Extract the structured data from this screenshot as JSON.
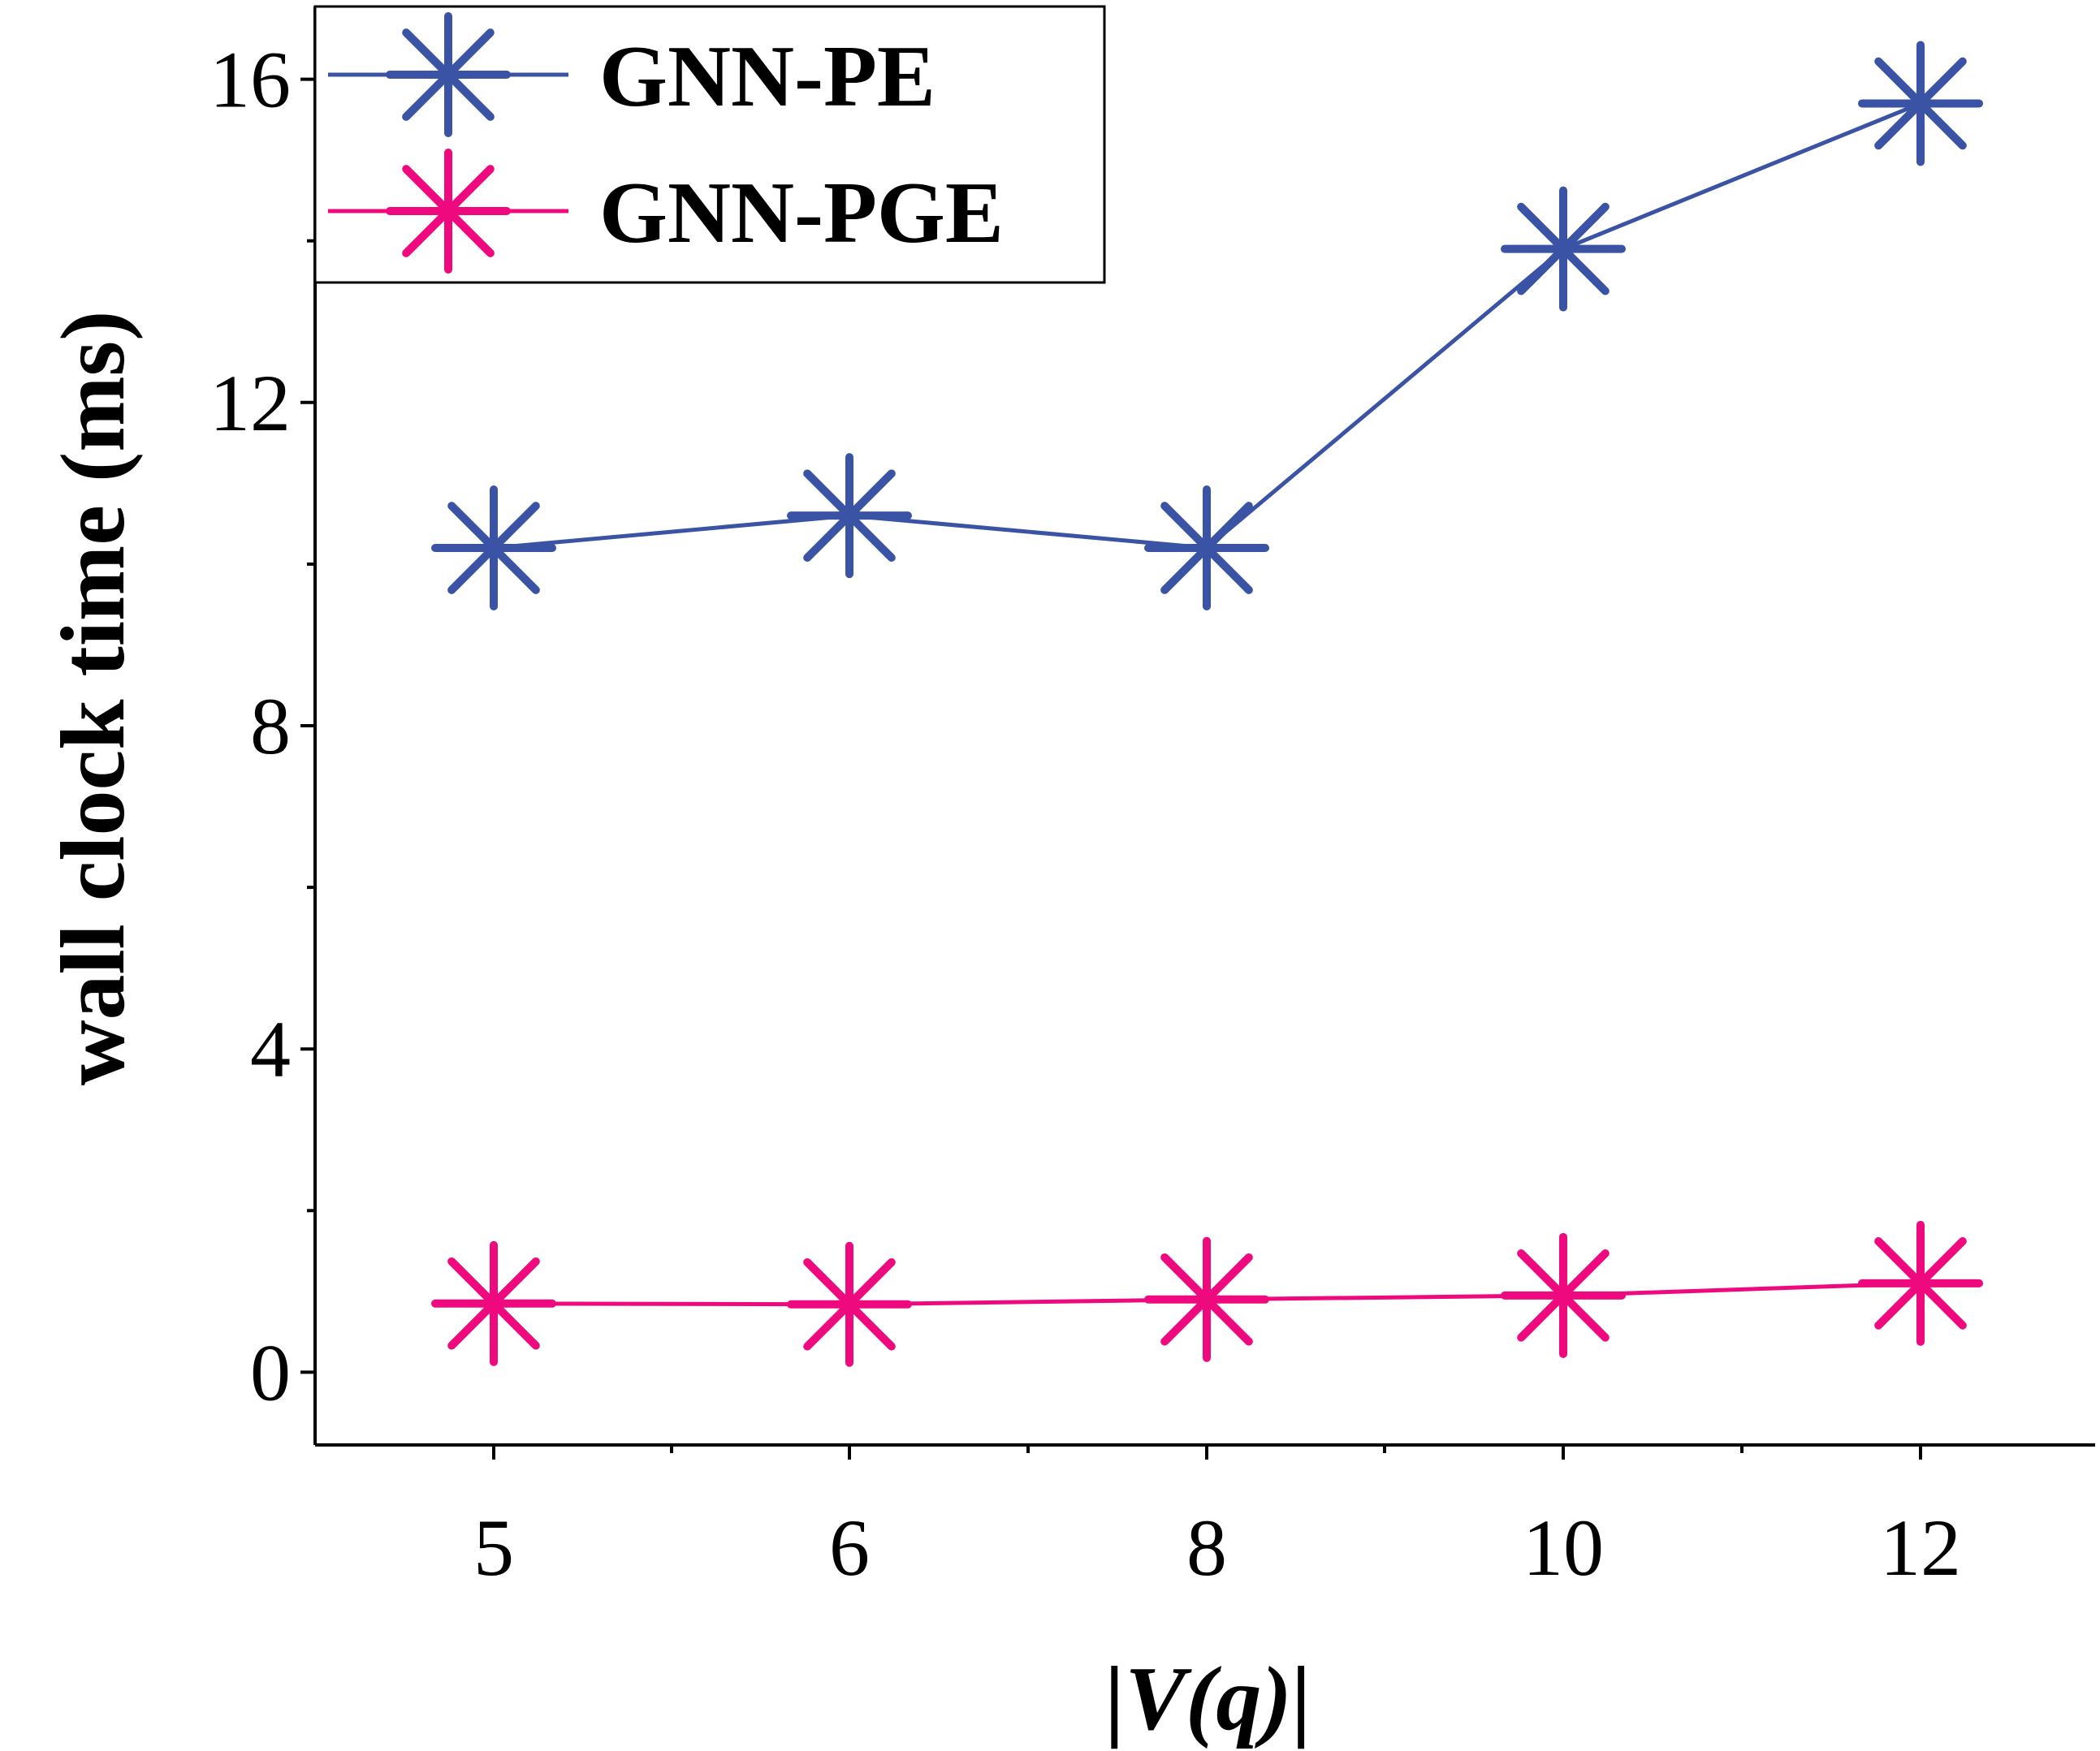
{
  "chart_data": {
    "type": "line",
    "title": "",
    "xlabel": "|V(q)|",
    "ylabel": "wall clock time (ms)",
    "categories": [
      "5",
      "6",
      "8",
      "10",
      "12"
    ],
    "ylim": [
      -0.9,
      16.9
    ],
    "yticks": [
      0,
      4,
      8,
      12,
      16
    ],
    "grid": false,
    "legend_position": "top-left",
    "series": [
      {
        "name": "GNN-PE",
        "color": "#3a53a4",
        "marker": "asterisk",
        "values": [
          10.2,
          10.6,
          10.2,
          13.9,
          15.7
        ]
      },
      {
        "name": "GNN-PGE",
        "color": "#ee0a7e",
        "marker": "asterisk",
        "values": [
          0.85,
          0.84,
          0.9,
          0.95,
          1.1
        ]
      }
    ]
  }
}
